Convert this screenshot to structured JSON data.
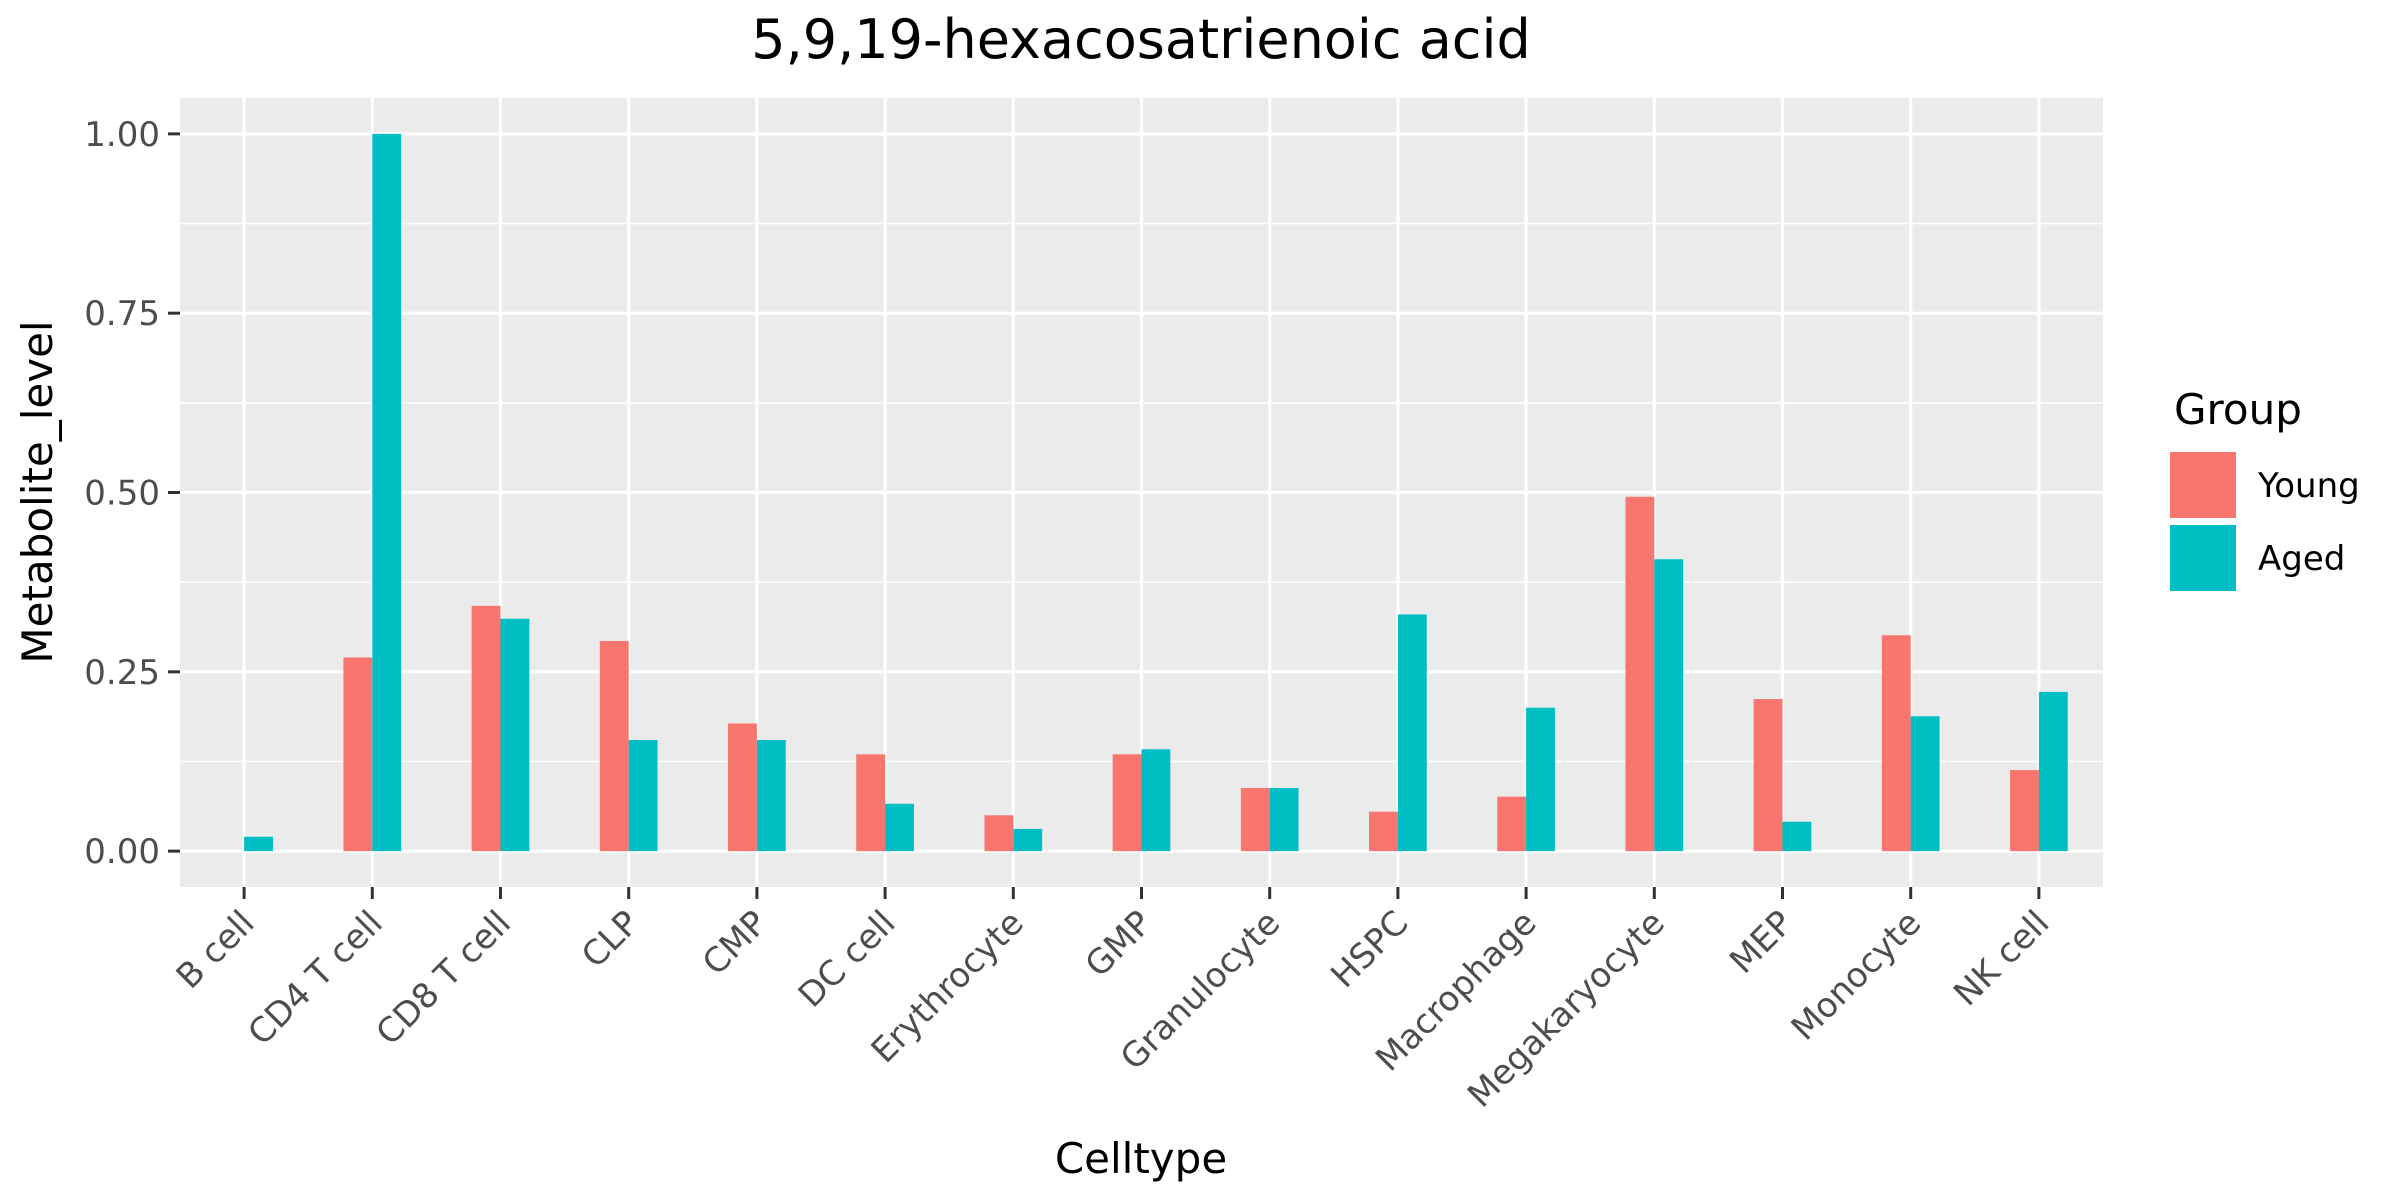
{
  "chart_data": {
    "type": "bar",
    "title": "5,9,19-hexacosatrienoic acid",
    "xlabel": "Celltype",
    "ylabel": "Metabolite_level",
    "categories": [
      "B cell",
      "CD4 T cell",
      "CD8 T cell",
      "CLP",
      "CMP",
      "DC cell",
      "Erythrocyte",
      "GMP",
      "Granulocyte",
      "HSPC",
      "Macrophage",
      "Megakaryocyte",
      "MEP",
      "Monocyte",
      "NK cell"
    ],
    "series": [
      {
        "name": "Young",
        "color": "#F8766D",
        "values": [
          0.0,
          0.27,
          0.342,
          0.293,
          0.178,
          0.135,
          0.05,
          0.135,
          0.088,
          0.055,
          0.076,
          0.494,
          0.212,
          0.301,
          0.113
        ]
      },
      {
        "name": "Aged",
        "color": "#00BFC4",
        "values": [
          0.02,
          1.0,
          0.324,
          0.155,
          0.155,
          0.066,
          0.031,
          0.142,
          0.088,
          0.33,
          0.2,
          0.407,
          0.041,
          0.188,
          0.222
        ]
      }
    ],
    "ylim": [
      -0.05,
      1.05
    ],
    "yticks": [
      "0.00",
      "0.25",
      "0.50",
      "0.75",
      "1.00"
    ],
    "legend": {
      "title": "Group",
      "placement": "right"
    },
    "grid": true,
    "panel_background": "#EBEBEB"
  }
}
